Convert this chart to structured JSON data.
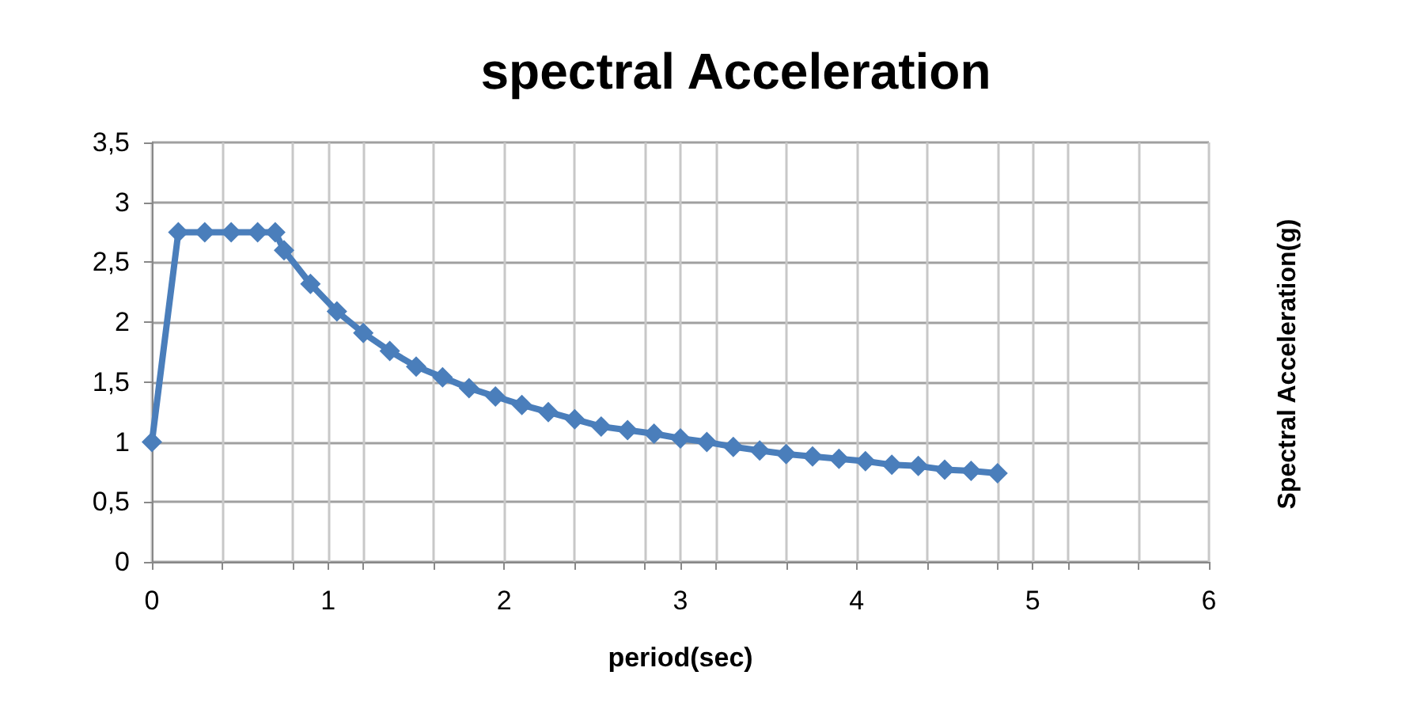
{
  "chart_data": {
    "type": "line",
    "title": "spectral Acceleration",
    "xlabel": "period(sec)",
    "ylabel": "Spectral Acceleration(g)",
    "x": [
      0,
      0.15,
      0.3,
      0.45,
      0.6,
      0.7,
      0.75,
      0.9,
      1.05,
      1.2,
      1.35,
      1.5,
      1.65,
      1.8,
      1.95,
      2.1,
      2.25,
      2.4,
      2.55,
      2.7,
      2.85,
      3.0,
      3.15,
      3.3,
      3.45,
      3.6,
      3.75,
      3.9,
      4.05,
      4.2,
      4.35,
      4.5,
      4.65,
      4.8
    ],
    "series": [
      {
        "color": "#4a7ebb",
        "values": [
          1,
          2.75,
          2.75,
          2.75,
          2.75,
          2.75,
          2.6,
          2.32,
          2.09,
          1.91,
          1.76,
          1.63,
          1.54,
          1.45,
          1.38,
          1.31,
          1.25,
          1.19,
          1.13,
          1.1,
          1.07,
          1.03,
          1.0,
          0.96,
          0.93,
          0.9,
          0.88,
          0.86,
          0.84,
          0.81,
          0.8,
          0.77,
          0.76,
          0.74
        ]
      }
    ],
    "xlim": [
      0,
      6
    ],
    "xticks": [
      0,
      {
        "value": 0.4,
        "label": null
      },
      {
        "value": 0.8,
        "label": null
      },
      1,
      {
        "value": 1.2,
        "label": null
      },
      {
        "value": 1.6,
        "label": null
      },
      2,
      {
        "value": 2.4,
        "label": null
      },
      {
        "value": 2.8,
        "label": null
      },
      3,
      {
        "value": 3.2,
        "label": null
      },
      {
        "value": 3.6,
        "label": null
      },
      4,
      {
        "value": 4.4,
        "label": null
      },
      {
        "value": 4.8,
        "label": null
      },
      5,
      {
        "value": 5.2,
        "label": null
      },
      {
        "value": 5.6,
        "label": null
      },
      6
    ],
    "ylim": [
      0,
      3.5
    ],
    "yticks": [
      0,
      {
        "value": 0.5,
        "label": "0,5"
      },
      1,
      {
        "value": 1.5,
        "label": "1,5"
      },
      2,
      {
        "value": 2.5,
        "label": "2,5"
      },
      3,
      {
        "value": 3.5,
        "label": "3,5"
      }
    ],
    "grid": true,
    "marker": "diamond",
    "line_style": "solid"
  }
}
